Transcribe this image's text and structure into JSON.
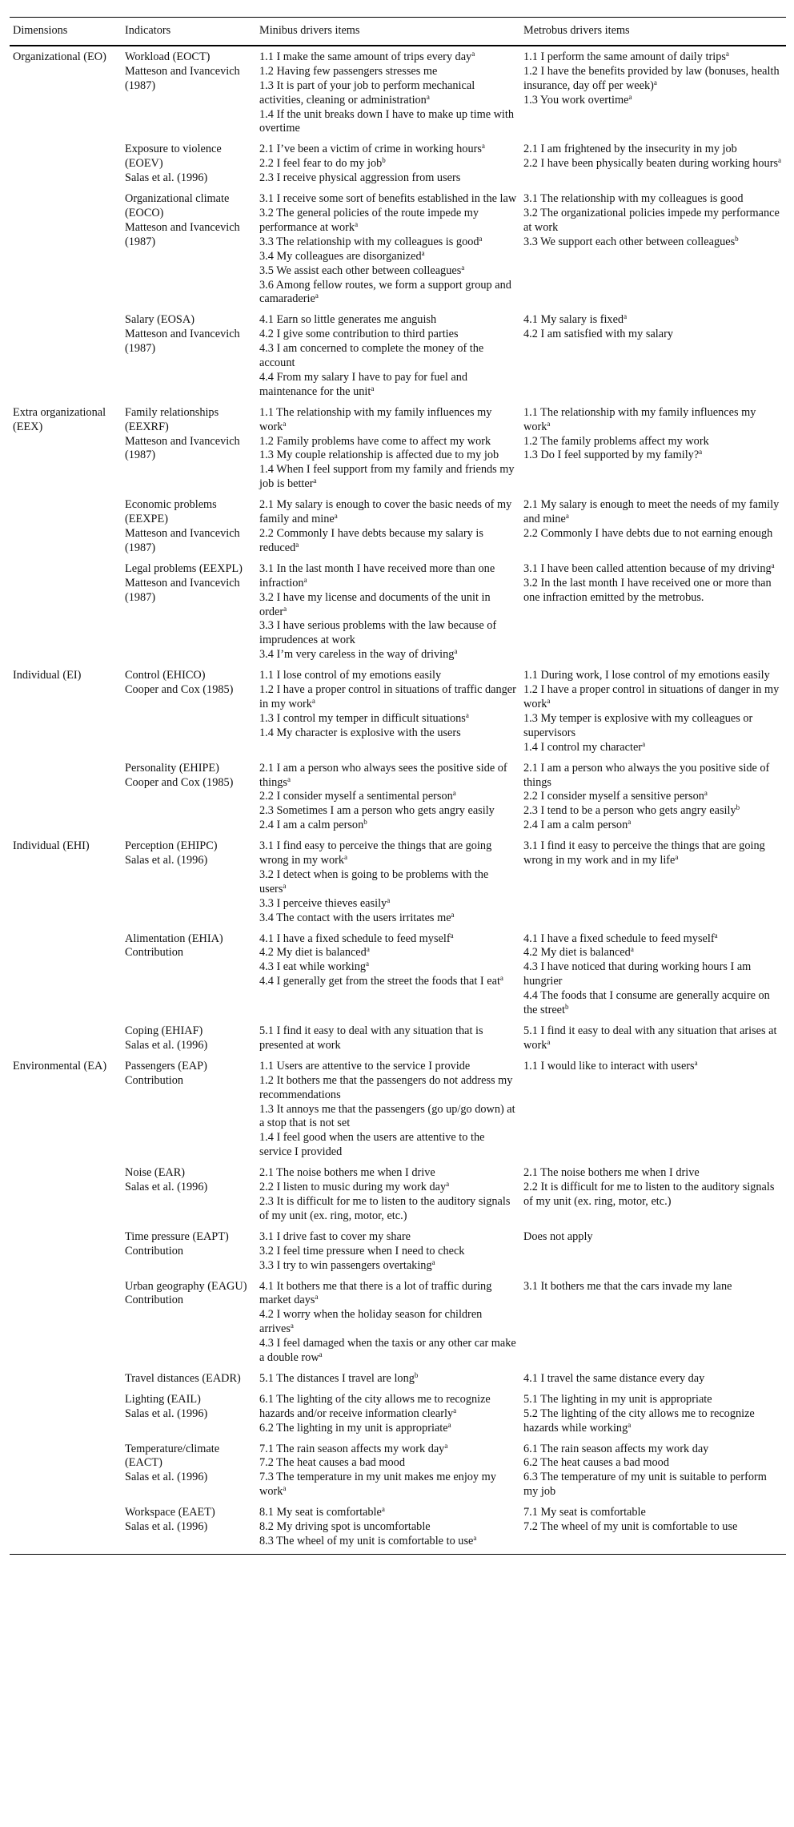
{
  "headers": [
    "Dimensions",
    "Indicators",
    "Minibus drivers items",
    "Metrobus drivers items"
  ],
  "rows": [
    {
      "dimension": "Organizational (EO)",
      "indicator": "Workload (EOCT)",
      "source": "Matteson and Ivancevich (1987)",
      "minibus": [
        {
          "t": "1.1 I make the same amount of trips every day",
          "s": "a"
        },
        {
          "t": "1.2 Having few passengers stresses me"
        },
        {
          "t": "1.3 It is part of your job to perform mechanical activities, cleaning or administration",
          "s": "a"
        },
        {
          "t": "1.4 If the unit breaks down I have to make up time with overtime"
        }
      ],
      "metrobus": [
        {
          "t": "1.1 I perform the same amount of daily trips",
          "s": "a"
        },
        {
          "t": "1.2 I have the benefits provided by law (bonuses, health insurance, day off per week)",
          "s": "a"
        },
        {
          "t": "1.3 You work overtime",
          "s": "a"
        }
      ]
    },
    {
      "indicator": "Exposure to violence (EOEV)",
      "source": "Salas et al. (1996)",
      "minibus": [
        {
          "t": "2.1 I’ve been a victim of crime in working hours",
          "s": "a"
        },
        {
          "t": "2.2 I feel fear to do my job",
          "s": "b"
        },
        {
          "t": "2.3 I receive physical aggression from users"
        }
      ],
      "metrobus": [
        {
          "t": "2.1 I am frightened by the insecurity in my job"
        },
        {
          "t": "2.2 I have been physically beaten during working hours",
          "s": "a"
        }
      ]
    },
    {
      "indicator": "Organizational climate (EOCO)",
      "source": "Matteson and Ivancevich (1987)",
      "minibus": [
        {
          "t": "3.1 I receive some sort of benefits established in the law"
        },
        {
          "t": "3.2 The general policies of the route impede my performance at work",
          "s": "a"
        },
        {
          "t": "3.3 The relationship with my colleagues is good",
          "s": "a"
        },
        {
          "t": "3.4 My colleagues are disorganized",
          "s": "a"
        },
        {
          "t": "3.5 We assist each other between colleagues",
          "s": "a"
        },
        {
          "t": "3.6 Among fellow routes, we form a support group and camaraderie",
          "s": "a"
        }
      ],
      "metrobus": [
        {
          "t": "3.1 The relationship with my colleagues is good"
        },
        {
          "t": "3.2 The organizational policies impede my performance at work"
        },
        {
          "t": "3.3 We support each other between colleagues",
          "s": "b"
        }
      ]
    },
    {
      "indicator": "Salary (EOSA)",
      "source": "Matteson and Ivancevich (1987)",
      "minibus": [
        {
          "t": "4.1 Earn so little generates me anguish"
        },
        {
          "t": "4.2 I give some contribution to third parties"
        },
        {
          "t": "4.3 I am concerned to complete the money of the account"
        },
        {
          "t": "4.4 From my salary I have to pay for fuel and maintenance for the unit",
          "s": "a"
        }
      ],
      "metrobus": [
        {
          "t": "4.1 My salary is fixed",
          "s": "a"
        },
        {
          "t": "4.2 I am satisfied with my salary"
        }
      ]
    },
    {
      "dimension": "Extra organizational (EEX)",
      "indicator": "Family relationships (EEXRF)",
      "source": "Matteson and Ivancevich (1987)",
      "minibus": [
        {
          "t": "1.1 The relationship with my family influences my work",
          "s": "a"
        },
        {
          "t": "1.2 Family problems have come to affect my work"
        },
        {
          "t": "1.3 My couple relationship is affected due to my job"
        },
        {
          "t": "1.4 When I feel support from my family and friends my job is better",
          "s": "a"
        }
      ],
      "metrobus": [
        {
          "t": "1.1 The relationship with my family influences my work",
          "s": "a"
        },
        {
          "t": "1.2 The family problems affect my work"
        },
        {
          "t": "1.3 Do I feel supported by my family?",
          "s": "a"
        }
      ]
    },
    {
      "indicator": "Economic problems (EEXPE)",
      "source": "Matteson and Ivancevich (1987)",
      "minibus": [
        {
          "t": "2.1 My salary is enough to cover the basic needs of my family and mine",
          "s": "a"
        },
        {
          "t": "2.2 Commonly I have debts because my salary is reduced",
          "s": "a"
        }
      ],
      "metrobus": [
        {
          "t": "2.1 My salary is enough to meet the needs of my family and mine",
          "s": "a"
        },
        {
          "t": "2.2 Commonly I have debts due to not earning enough"
        }
      ]
    },
    {
      "indicator": "Legal problems (EEXPL)",
      "source": "Matteson and Ivancevich (1987)",
      "minibus": [
        {
          "t": "3.1 In the last month I have received more than one infraction",
          "s": "a"
        },
        {
          "t": "3.2 I have my license and documents of the unit in order",
          "s": "a"
        },
        {
          "t": "3.3 I have serious problems with the law because of imprudences at work"
        },
        {
          "t": "3.4 I’m very careless in the way of driving",
          "s": "a"
        }
      ],
      "metrobus": [
        {
          "t": "3.1 I have been called attention because of my driving",
          "s": "a"
        },
        {
          "t": "3.2 In the last month I have received one or more than one infraction emitted by the metrobus."
        }
      ]
    },
    {
      "dimension": "Individual (EI)",
      "indicator": "Control (EHICO)",
      "source": "Cooper and Cox (1985)",
      "minibus": [
        {
          "t": "1.1 I lose control of my emotions easily"
        },
        {
          "t": "1.2 I have a proper control in situations of traffic danger in my work",
          "s": "a"
        },
        {
          "t": "1.3 I control my temper in difficult situations",
          "s": "a"
        },
        {
          "t": "1.4 My character is explosive with the users"
        }
      ],
      "metrobus": [
        {
          "t": "1.1 During work, I lose control of my emotions easily"
        },
        {
          "t": "1.2 I have a proper control in situations of danger in my work",
          "s": "a"
        },
        {
          "t": "1.3 My temper is explosive with my colleagues or supervisors"
        },
        {
          "t": "1.4 I control my character",
          "s": "a"
        }
      ]
    },
    {
      "indicator": "Personality (EHIPE)",
      "source": "Cooper and Cox (1985)",
      "minibus": [
        {
          "t": "2.1 I am a person who always sees the positive side of things",
          "s": "a"
        },
        {
          "t": "2.2 I consider myself a sentimental person",
          "s": "a"
        },
        {
          "t": "2.3 Sometimes I am a person who gets angry easily"
        },
        {
          "t": "2.4 I am a calm person",
          "s": "b"
        }
      ],
      "metrobus": [
        {
          "t": "2.1 I am a person who always the you positive side of things"
        },
        {
          "t": "2.2 I consider myself a sensitive person",
          "s": "a"
        },
        {
          "t": "2.3 I tend to be a person who gets angry easily",
          "s": "b"
        },
        {
          "t": "2.4 I am a calm person",
          "s": "a"
        }
      ]
    },
    {
      "dimension": "Individual (EHI)",
      "indicator": "Perception (EHIPC)",
      "source": "Salas et al. (1996)",
      "minibus": [
        {
          "t": "3.1 I find easy to perceive the things that are going wrong in my work",
          "s": "a"
        },
        {
          "t": "3.2 I detect when is going to be problems with the users",
          "s": "a"
        },
        {
          "t": "3.3 I perceive thieves easily",
          "s": "a"
        },
        {
          "t": "3.4 The contact with the users irritates me",
          "s": "a"
        }
      ],
      "metrobus": [
        {
          "t": "3.1 I find it easy to perceive the things that are going wrong in my work and in my life",
          "s": "a"
        }
      ]
    },
    {
      "indicator": "Alimentation (EHIA)",
      "source": "Contribution",
      "minibus": [
        {
          "t": "4.1 I have a fixed schedule to feed myself",
          "s": "a"
        },
        {
          "t": "4.2 My diet is balanced",
          "s": "a"
        },
        {
          "t": "4.3 I eat while working",
          "s": "a"
        },
        {
          "t": "4.4 I generally get from the street the foods that I eat",
          "s": "a"
        }
      ],
      "metrobus": [
        {
          "t": "4.1 I have a fixed schedule to feed myself",
          "s": "a"
        },
        {
          "t": "4.2 My diet is balanced",
          "s": "a"
        },
        {
          "t": "4.3 I have noticed that during working hours I am hungrier"
        },
        {
          "t": "4.4 The foods that I consume are generally acquire on the street",
          "s": "b"
        }
      ]
    },
    {
      "indicator": "Coping (EHIAF)",
      "source": "Salas et al. (1996)",
      "minibus": [
        {
          "t": "5.1 I find it easy to deal with any situation that is presented at work"
        }
      ],
      "metrobus": [
        {
          "t": "5.1 I find it easy to deal with any situation that arises at work",
          "s": "a"
        }
      ]
    },
    {
      "dimension": "Environmental (EA)",
      "indicator": "Passengers (EAP)",
      "source": "Contribution",
      "minibus": [
        {
          "t": "1.1 Users are attentive to the service I provide"
        },
        {
          "t": "1.2 It bothers me that the passengers do not address my recommendations"
        },
        {
          "t": "1.3 It annoys me that the passengers (go up/go down) at a stop that is not set"
        },
        {
          "t": "1.4 I feel good when the users are attentive to the service I provided"
        }
      ],
      "metrobus": [
        {
          "t": "1.1 I would like to interact with users",
          "s": "a"
        }
      ]
    },
    {
      "indicator": "Noise (EAR)",
      "source": "Salas et al. (1996)",
      "minibus": [
        {
          "t": "2.1 The noise bothers me when I drive"
        },
        {
          "t": "2.2 I listen to music during my work day",
          "s": "a"
        },
        {
          "t": "2.3 It is difficult for me to listen to the auditory signals of my unit (ex. ring, motor, etc.)"
        }
      ],
      "metrobus": [
        {
          "t": "2.1 The noise bothers me when I drive"
        },
        {
          "t": "2.2 It is difficult for me to listen to the auditory signals of my unit (ex. ring, motor, etc.)"
        }
      ]
    },
    {
      "indicator": "Time pressure (EAPT)",
      "source": "Contribution",
      "minibus": [
        {
          "t": "3.1 I drive fast to cover my share"
        },
        {
          "t": "3.2 I feel time pressure when I need to check"
        },
        {
          "t": "3.3 I try to win passengers overtaking",
          "s": "a"
        }
      ],
      "metrobus": [
        {
          "t": "Does not apply"
        }
      ]
    },
    {
      "indicator": "Urban geography (EAGU)",
      "source": "Contribution",
      "minibus": [
        {
          "t": "4.1 It bothers me that there is a lot of traffic during market days",
          "s": "a"
        },
        {
          "t": "4.2 I worry when the holiday season for children arrives",
          "s": "a"
        },
        {
          "t": "4.3 I feel damaged when the taxis or any other car make a double row",
          "s": "a"
        }
      ],
      "metrobus": [
        {
          "t": "3.1 It bothers me that the cars invade my lane"
        }
      ]
    },
    {
      "indicator": "Travel distances (EADR)",
      "minibus": [
        {
          "t": "5.1 The distances I travel are long",
          "s": "b"
        }
      ],
      "metrobus": [
        {
          "t": "4.1 I travel the same distance every day"
        }
      ]
    },
    {
      "indicator": "Lighting (EAIL)",
      "source": "Salas et al. (1996)",
      "minibus": [
        {
          "t": "6.1 The lighting of the city allows me to recognize hazards and/or receive information clearly",
          "s": "a"
        },
        {
          "t": "6.2 The lighting in my unit is appropriate",
          "s": "a"
        }
      ],
      "metrobus": [
        {
          "t": "5.1 The lighting in my unit is appropriate"
        },
        {
          "t": "5.2 The lighting of the city allows me to recognize hazards while working",
          "s": "a"
        }
      ]
    },
    {
      "indicator": "Temperature/climate (EACT)",
      "source": "Salas et al. (1996)",
      "minibus": [
        {
          "t": "7.1 The rain season affects my work day",
          "s": "a"
        },
        {
          "t": "7.2 The heat causes a bad mood"
        },
        {
          "t": "7.3 The temperature in my unit makes me enjoy my work",
          "s": "a"
        }
      ],
      "metrobus": [
        {
          "t": "6.1 The rain season affects my work day"
        },
        {
          "t": "6.2 The heat causes a bad mood"
        },
        {
          "t": "6.3 The temperature of my unit is suitable to perform my job"
        }
      ]
    },
    {
      "indicator": "Workspace (EAET)",
      "source": "Salas et al. (1996)",
      "minibus": [
        {
          "t": "8.1 My seat is comfortable",
          "s": "a"
        },
        {
          "t": "8.2 My driving spot is uncomfortable"
        },
        {
          "t": "8.3 The wheel of my unit is comfortable to use",
          "s": "a"
        }
      ],
      "metrobus": [
        {
          "t": "7.1 My seat is comfortable"
        },
        {
          "t": "7.2 The wheel of my unit is comfortable to use"
        }
      ]
    }
  ]
}
